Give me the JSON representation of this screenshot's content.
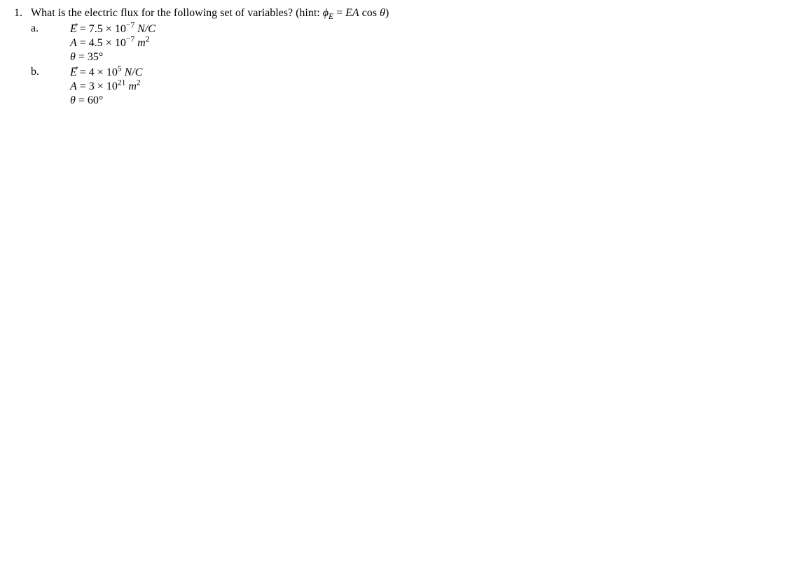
{
  "question": {
    "number": "1.",
    "text_prefix": "What is the electric flux for the following set of variables? (hint: ",
    "hint_phi": "ϕ",
    "hint_phi_sub": "E",
    "hint_eq": " = ",
    "hint_EA": "EA",
    "hint_cos": " cos ",
    "hint_theta": "θ",
    "text_suffix": ")",
    "parts": [
      {
        "letter": "a.",
        "E_sym": "E",
        "E_eq": " = 7.5 × 10",
        "E_exp": "−7",
        "E_unit_space": "  ",
        "E_unit": "N/C",
        "A_sym": "A",
        "A_eq": " = 4.5 × 10",
        "A_exp": "−7",
        "A_unit_space": " ",
        "A_unit_m": "m",
        "A_unit_exp": "2",
        "theta_sym": "θ",
        "theta_eq": " = 35",
        "theta_deg": "°"
      },
      {
        "letter": "b.",
        "E_sym": "E",
        "E_eq": " = 4 × 10",
        "E_exp": "5",
        "E_unit_space": "  ",
        "E_unit": "N/C",
        "A_sym": "A",
        "A_eq": " = 3 × 10",
        "A_exp": "21",
        "A_unit_space": " ",
        "A_unit_m": "m",
        "A_unit_exp": "2",
        "theta_sym": "θ",
        "theta_eq": " = 60",
        "theta_deg": "°"
      }
    ]
  }
}
